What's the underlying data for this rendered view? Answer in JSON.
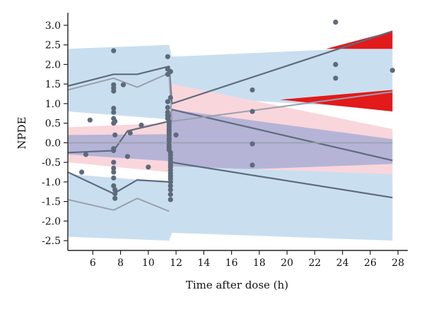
{
  "chart_data": {
    "type": "scatter",
    "title": "",
    "xlabel": "Time after dose (h)",
    "ylabel": "NPDE",
    "xlim": [
      4.2,
      28.6
    ],
    "ylim": [
      -2.75,
      3.25
    ],
    "xticks": [
      6,
      8,
      10,
      12,
      14,
      16,
      18,
      20,
      22,
      24,
      26,
      28
    ],
    "yticks": [
      -2.5,
      -2.0,
      -1.5,
      -1.0,
      -0.5,
      0.0,
      0.5,
      1.0,
      1.5,
      2.0,
      2.5,
      3.0
    ],
    "ytick_labels": [
      "-2.5",
      "-2.0",
      "-1.5",
      "-1.0",
      "-0.5",
      "0.0",
      "0.5",
      "1.0",
      "1.5",
      "2.0",
      "2.5",
      "3.0"
    ],
    "grid": false,
    "colors": {
      "outer_band": "#c9dff0",
      "median_band_outer": "#f9d6dc",
      "median_band_inner": "#a9aed6",
      "out_of_band": "#e21a1a",
      "observed_points": "#5d6a7c",
      "observed_line": "#5f6b7d",
      "reference_line": "#9aa0ac"
    },
    "bands": [
      {
        "name": "upper_pi",
        "x": [
          4.2,
          11.5,
          11.7,
          27.6
        ],
        "lower": [
          0.8,
          0.6,
          1.2,
          0.85
        ],
        "upper": [
          2.4,
          2.5,
          2.2,
          2.45
        ]
      },
      {
        "name": "median_pi",
        "x": [
          4.2,
          11.5,
          11.7,
          27.6
        ],
        "lower": [
          -0.5,
          -0.75,
          -1.4,
          -0.8
        ],
        "upper": [
          0.4,
          0.5,
          1.5,
          0.35
        ]
      },
      {
        "name": "lower_pi",
        "x": [
          4.2,
          11.5,
          11.7,
          27.6
        ],
        "lower": [
          -2.4,
          -2.5,
          -2.3,
          -2.5
        ],
        "upper": [
          -0.8,
          -1.0,
          -0.6,
          -0.8
        ]
      }
    ],
    "out_of_band_regions": [
      {
        "x": [
          22.8,
          27.6
        ],
        "lower": [
          2.4,
          2.4
        ],
        "upper": [
          2.4,
          2.85
        ]
      },
      {
        "x": [
          19.5,
          27.6
        ],
        "lower": [
          1.1,
          0.8
        ],
        "upper": [
          1.1,
          1.35
        ]
      }
    ],
    "series": [
      {
        "role": "observed_p95",
        "x": [
          4.2,
          7.5,
          9.2,
          11.5,
          11.7,
          27.6
        ],
        "y": [
          1.45,
          1.75,
          1.75,
          1.95,
          1.0,
          2.85
        ]
      },
      {
        "role": "observed_median",
        "x": [
          4.2,
          7.5,
          8.5,
          11.5,
          11.7,
          27.6
        ],
        "y": [
          -0.25,
          -0.2,
          0.3,
          0.55,
          0.85,
          -0.45
        ]
      },
      {
        "role": "observed_p05",
        "x": [
          4.2,
          7.5,
          9.2,
          11.5,
          11.7,
          27.6
        ],
        "y": [
          -0.75,
          -1.3,
          -0.95,
          -1.0,
          -0.5,
          -1.4
        ]
      },
      {
        "role": "theoretical_p95",
        "x": [
          4.2,
          7.5,
          9.2,
          11.5,
          11.7,
          27.6
        ],
        "y": [
          1.35,
          1.65,
          1.42,
          1.78,
          0.55,
          1.3
        ]
      },
      {
        "role": "theoretical_p05",
        "x": [
          4.2,
          7.5,
          9.2,
          11.5
        ],
        "y": [
          -1.45,
          -1.72,
          -1.42,
          -1.75
        ]
      },
      {
        "role": "reference_zero",
        "x": [
          4.2,
          27.6
        ],
        "y": [
          0.0,
          0.0
        ]
      }
    ],
    "points": {
      "x": [
        5.2,
        5.5,
        5.8,
        7.5,
        7.5,
        7.5,
        7.5,
        7.5,
        7.5,
        7.5,
        7.5,
        7.5,
        7.5,
        7.5,
        7.5,
        7.5,
        7.5,
        7.5,
        7.6,
        7.6,
        7.6,
        7.6,
        7.6,
        8.2,
        8.5,
        8.7,
        9.5,
        10.0,
        11.4,
        11.4,
        11.4,
        11.4,
        11.4,
        11.4,
        11.4,
        11.4,
        11.5,
        11.5,
        11.5,
        11.5,
        11.5,
        11.5,
        11.5,
        11.5,
        11.5,
        11.5,
        11.5,
        11.5,
        11.6,
        11.6,
        11.6,
        11.6,
        11.6,
        11.6,
        11.6,
        11.6,
        11.6,
        11.6,
        11.6,
        11.6,
        11.6,
        11.6,
        11.6,
        11.6,
        11.6,
        12.0,
        17.5,
        17.5,
        17.5,
        17.5,
        23.5,
        23.5,
        23.5,
        27.6
      ],
      "y": [
        -0.75,
        -0.3,
        0.58,
        2.35,
        1.48,
        1.4,
        1.32,
        0.88,
        0.78,
        0.62,
        0.5,
        -0.15,
        -0.2,
        -0.5,
        -0.65,
        -0.75,
        -0.9,
        -1.1,
        0.55,
        0.2,
        -1.2,
        -1.3,
        -1.42,
        1.48,
        -0.35,
        0.25,
        0.45,
        -0.62,
        2.2,
        1.88,
        1.75,
        1.05,
        0.9,
        0.78,
        0.7,
        0.62,
        0.55,
        0.48,
        0.42,
        0.35,
        0.3,
        0.25,
        0.18,
        0.1,
        0.05,
        -0.05,
        -0.12,
        -0.18,
        -0.25,
        -0.32,
        -0.4,
        -0.48,
        -0.55,
        -0.62,
        -0.7,
        -0.78,
        -0.85,
        -0.92,
        -1.0,
        -1.1,
        -1.2,
        -1.32,
        -1.45,
        1.82,
        1.15,
        0.2,
        1.35,
        0.8,
        -0.03,
        -0.57,
        3.08,
        2.0,
        1.65,
        1.85
      ]
    }
  }
}
